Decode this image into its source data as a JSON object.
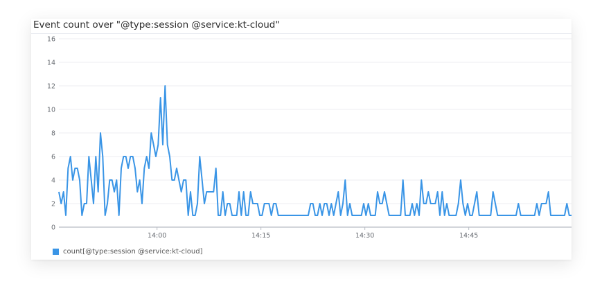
{
  "colors": {
    "series": "#3a95e6",
    "grid": "#ececf0",
    "axis": "#b8bcc4",
    "text": "#666a70"
  },
  "chart_data": {
    "type": "line",
    "title": "Event count over \"@type:session @service:kt-cloud\"",
    "xlabel": "",
    "ylabel": "",
    "ylim": [
      0,
      16
    ],
    "yticks": [
      "0",
      "2",
      "4",
      "6",
      "8",
      "10",
      "12",
      "14",
      "16"
    ],
    "xticks": [
      {
        "label": "14:00",
        "minute_offset": 14.1667
      },
      {
        "label": "14:15",
        "minute_offset": 29.1667
      },
      {
        "label": "14:30",
        "minute_offset": 44.1667
      },
      {
        "label": "14:45",
        "minute_offset": 59.1667
      }
    ],
    "x_start": "13:45:50",
    "interval_seconds": 20,
    "grid": true,
    "legend_position": "bottom-left",
    "series": [
      {
        "name": "count[@type:session @service:kt-cloud]",
        "values": [
          3,
          2,
          3,
          1,
          5,
          6,
          4,
          5,
          5,
          4,
          1,
          2,
          2,
          6,
          4,
          2,
          6,
          3,
          8,
          6,
          1,
          2,
          4,
          4,
          3,
          4,
          1,
          5,
          6,
          6,
          5,
          6,
          6,
          5,
          3,
          4,
          2,
          5,
          6,
          5,
          8,
          7,
          6,
          7,
          11,
          7,
          12,
          7,
          6,
          4,
          4,
          5,
          4,
          3,
          4,
          4,
          1,
          3,
          1,
          1,
          2,
          6,
          4,
          2,
          3,
          3,
          3,
          3,
          5,
          1,
          1,
          3,
          1,
          2,
          2,
          1,
          1,
          1,
          3,
          1,
          3,
          1,
          1,
          3,
          2,
          2,
          2,
          1,
          1,
          2,
          2,
          2,
          1,
          2,
          2,
          1,
          1,
          1,
          1,
          1,
          1,
          1,
          1,
          1,
          1,
          1,
          1,
          1,
          1,
          2,
          2,
          1,
          1,
          2,
          1,
          2,
          2,
          1,
          2,
          1,
          2,
          3,
          1,
          2,
          4,
          1,
          2,
          1,
          1,
          1,
          1,
          1,
          2,
          1,
          2,
          1,
          1,
          1,
          3,
          2,
          2,
          3,
          2,
          1,
          1,
          1,
          1,
          1,
          1,
          4,
          1,
          1,
          1,
          2,
          1,
          2,
          1,
          4,
          2,
          2,
          3,
          2,
          2,
          2,
          3,
          1,
          3,
          1,
          2,
          1,
          1,
          1,
          1,
          2,
          4,
          2,
          1,
          2,
          1,
          1,
          2,
          3,
          1,
          1,
          1,
          1,
          1,
          1,
          3,
          2,
          1,
          1,
          1,
          1,
          1,
          1,
          1,
          1,
          1,
          2,
          1,
          1,
          1,
          1,
          1,
          1,
          1,
          2,
          1,
          2,
          2,
          2,
          3,
          1,
          1,
          1,
          1,
          1,
          1,
          1,
          2,
          1,
          1
        ]
      }
    ]
  }
}
